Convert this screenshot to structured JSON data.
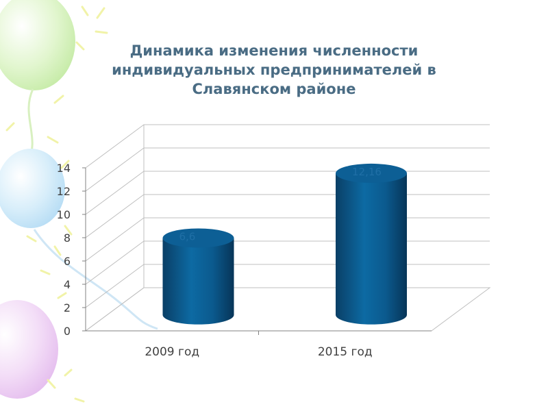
{
  "chart_data": {
    "type": "bar",
    "title_lines": [
      "Динамика изменения численности",
      "индивидуальных предпринимателей в",
      "Славянском районе"
    ],
    "categories": [
      "2009 год",
      "2015 год"
    ],
    "values": [
      6.6,
      12.16
    ],
    "value_labels": [
      "6,6",
      "12,16"
    ],
    "ylim": [
      0,
      14
    ],
    "yticks": [
      0,
      2,
      4,
      6,
      8,
      10,
      12,
      14
    ],
    "grid": true,
    "style": "3d-cylinder",
    "bar_color": "#0b5a8e",
    "label_color": "#1f6fa6"
  }
}
